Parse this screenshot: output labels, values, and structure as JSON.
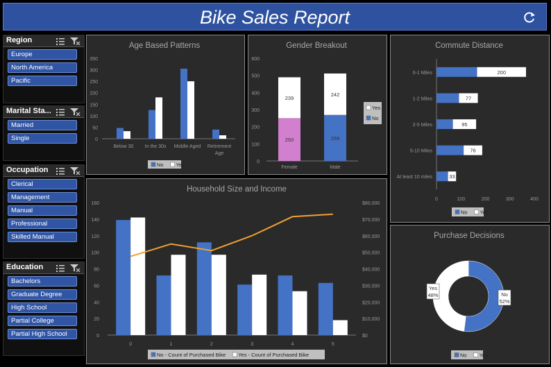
{
  "title": "Bike Sales Report",
  "colors": {
    "no": "#4472c4",
    "yes": "#ffffff",
    "female_no": "#d17fce",
    "line": "#f0a030",
    "title_bg": "#2f52a0"
  },
  "icons": {
    "refresh": "refresh-icon",
    "multiselect": "multi-select-icon",
    "clear_filter": "clear-filter-icon"
  },
  "slicers": {
    "region": {
      "title": "Region",
      "items": [
        "Europe",
        "North America",
        "Pacific"
      ]
    },
    "marital": {
      "title": "Marital Sta...",
      "items": [
        "Married",
        "Single"
      ]
    },
    "occupation": {
      "title": "Occupation",
      "items": [
        "Clerical",
        "Management",
        "Manual",
        "Professional",
        "Skilled Manual"
      ]
    },
    "education": {
      "title": "Education",
      "items": [
        "Bachelors",
        "Graduate Degree",
        "High School",
        "Partial College",
        "Partial High School"
      ]
    }
  },
  "chart_data": [
    {
      "id": "age",
      "type": "bar",
      "title": "Age Based Patterns",
      "categories": [
        "Below 30",
        "In the 30s",
        "Middle Aged",
        "Retirement Age"
      ],
      "series": [
        {
          "name": "No",
          "values": [
            47,
            125,
            305,
            40
          ]
        },
        {
          "name": "Yes",
          "values": [
            33,
            180,
            250,
            15
          ]
        }
      ],
      "yticks": [
        "0",
        "50",
        "100",
        "150",
        "200",
        "250",
        "300",
        "350"
      ],
      "ylim": [
        0,
        350
      ],
      "legend": [
        "No",
        "Yes"
      ]
    },
    {
      "id": "gender",
      "type": "bar",
      "stacked": true,
      "title": "Gender Breakout",
      "categories": [
        "Female",
        "Male"
      ],
      "series": [
        {
          "name": "No",
          "values": [
            250,
            269
          ]
        },
        {
          "name": "Yes",
          "values": [
            239,
            242
          ]
        }
      ],
      "labels": {
        "No": [
          "250",
          "269"
        ],
        "Yes": [
          "239",
          "242"
        ]
      },
      "yticks": [
        "0",
        "100",
        "200",
        "300",
        "400",
        "500",
        "600"
      ],
      "ylim": [
        0,
        600
      ],
      "legend": [
        "Yes",
        "No"
      ]
    },
    {
      "id": "commute",
      "type": "bar",
      "stacked": true,
      "orientation": "horizontal",
      "title": "Commute Distance",
      "categories": [
        "0-1 Miles",
        "1-2 Miles",
        "2-5 Miles",
        "5-10 Miles",
        "At least 10 miles"
      ],
      "series": [
        {
          "name": "No",
          "values": [
            166,
            92,
            67,
            111,
            47
          ]
        },
        {
          "name": "Yes",
          "values": [
            200,
            77,
            95,
            76,
            33
          ]
        }
      ],
      "labels": {
        "Yes": [
          "200",
          "77",
          "95",
          "76",
          "33"
        ]
      },
      "xticks": [
        "0",
        "100",
        "200",
        "300",
        "400"
      ],
      "xlim": [
        0,
        400
      ],
      "legend": [
        "No",
        "Yes"
      ]
    },
    {
      "id": "household",
      "type": "bar",
      "title": "Household Size and Income",
      "categories": [
        "0",
        "1",
        "2",
        "3",
        "4",
        "5"
      ],
      "series": [
        {
          "name": "No - Count of Purchased Bike",
          "values": [
            139,
            72,
            112,
            61,
            72,
            63
          ]
        },
        {
          "name": "Yes - Count of Purchased Bike",
          "values": [
            142,
            97,
            97,
            73,
            53,
            18
          ]
        }
      ],
      "line": {
        "name": "Income",
        "values": [
          47500,
          55000,
          51000,
          60000,
          71500,
          73000
        ]
      },
      "yticks": [
        "0",
        "20",
        "40",
        "60",
        "80",
        "100",
        "120",
        "140",
        "160"
      ],
      "ylim": [
        0,
        160
      ],
      "y2ticks": [
        "$0",
        "$10,000",
        "$20,000",
        "$30,000",
        "$40,000",
        "$50,000",
        "$60,000",
        "$70,000",
        "$80,000"
      ],
      "y2lim": [
        0,
        80000
      ],
      "legend": [
        "No - Count of Purchased Bike",
        "Yes - Count of Purchased Bike"
      ]
    },
    {
      "id": "purchase",
      "type": "pie",
      "donut": true,
      "title": "Purchase Decisions",
      "categories": [
        "No",
        "Yes"
      ],
      "values": [
        52,
        48
      ],
      "labels": {
        "No": [
          "No",
          "52%"
        ],
        "Yes": [
          "Yes",
          "48%"
        ]
      },
      "legend": [
        "No",
        "Yes"
      ]
    }
  ]
}
